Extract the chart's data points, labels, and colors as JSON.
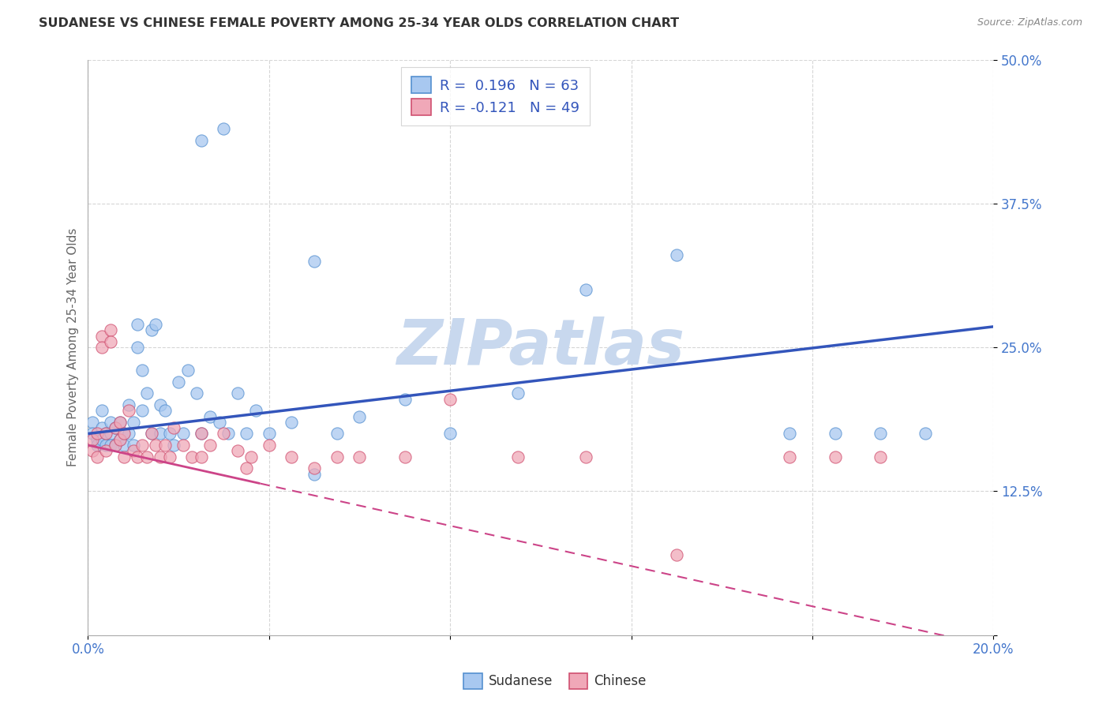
{
  "title": "SUDANESE VS CHINESE FEMALE POVERTY AMONG 25-34 YEAR OLDS CORRELATION CHART",
  "source": "Source: ZipAtlas.com",
  "ylabel": "Female Poverty Among 25-34 Year Olds",
  "xlim": [
    0.0,
    0.2
  ],
  "ylim": [
    0.0,
    0.5
  ],
  "sudanese_R": 0.196,
  "sudanese_N": 63,
  "chinese_R": -0.121,
  "chinese_N": 49,
  "sudanese_color": "#a8c8f0",
  "sudanese_edge": "#5590d0",
  "chinese_color": "#f0a8b8",
  "chinese_edge": "#d05070",
  "sudanese_line_color": "#3355bb",
  "chinese_line_color": "#cc4488",
  "watermark_color": "#c8d8ee",
  "sudanese_x": [
    0.001,
    0.001,
    0.002,
    0.002,
    0.003,
    0.003,
    0.003,
    0.004,
    0.004,
    0.005,
    0.005,
    0.005,
    0.006,
    0.006,
    0.007,
    0.007,
    0.008,
    0.008,
    0.009,
    0.009,
    0.01,
    0.01,
    0.011,
    0.011,
    0.012,
    0.012,
    0.013,
    0.014,
    0.014,
    0.015,
    0.016,
    0.016,
    0.017,
    0.018,
    0.019,
    0.02,
    0.021,
    0.022,
    0.024,
    0.025,
    0.027,
    0.029,
    0.031,
    0.033,
    0.035,
    0.037,
    0.04,
    0.045,
    0.05,
    0.055,
    0.06,
    0.07,
    0.08,
    0.095,
    0.11,
    0.13,
    0.155,
    0.165,
    0.175,
    0.185,
    0.025,
    0.03,
    0.05
  ],
  "sudanese_y": [
    0.185,
    0.175,
    0.17,
    0.165,
    0.195,
    0.18,
    0.17,
    0.175,
    0.165,
    0.185,
    0.175,
    0.165,
    0.18,
    0.165,
    0.185,
    0.17,
    0.175,
    0.165,
    0.2,
    0.175,
    0.185,
    0.165,
    0.27,
    0.25,
    0.23,
    0.195,
    0.21,
    0.175,
    0.265,
    0.27,
    0.175,
    0.2,
    0.195,
    0.175,
    0.165,
    0.22,
    0.175,
    0.23,
    0.21,
    0.175,
    0.19,
    0.185,
    0.175,
    0.21,
    0.175,
    0.195,
    0.175,
    0.185,
    0.14,
    0.175,
    0.19,
    0.205,
    0.175,
    0.21,
    0.3,
    0.33,
    0.175,
    0.175,
    0.175,
    0.175,
    0.43,
    0.44,
    0.325
  ],
  "chinese_x": [
    0.001,
    0.001,
    0.002,
    0.002,
    0.003,
    0.003,
    0.004,
    0.004,
    0.005,
    0.005,
    0.006,
    0.006,
    0.007,
    0.007,
    0.008,
    0.008,
    0.009,
    0.01,
    0.011,
    0.012,
    0.013,
    0.014,
    0.015,
    0.016,
    0.017,
    0.018,
    0.019,
    0.021,
    0.023,
    0.025,
    0.027,
    0.03,
    0.033,
    0.036,
    0.04,
    0.045,
    0.05,
    0.06,
    0.07,
    0.08,
    0.095,
    0.11,
    0.13,
    0.155,
    0.165,
    0.175,
    0.025,
    0.035,
    0.055
  ],
  "chinese_y": [
    0.17,
    0.16,
    0.175,
    0.155,
    0.26,
    0.25,
    0.175,
    0.16,
    0.265,
    0.255,
    0.18,
    0.165,
    0.185,
    0.17,
    0.175,
    0.155,
    0.195,
    0.16,
    0.155,
    0.165,
    0.155,
    0.175,
    0.165,
    0.155,
    0.165,
    0.155,
    0.18,
    0.165,
    0.155,
    0.175,
    0.165,
    0.175,
    0.16,
    0.155,
    0.165,
    0.155,
    0.145,
    0.155,
    0.155,
    0.205,
    0.155,
    0.155,
    0.07,
    0.155,
    0.155,
    0.155,
    0.155,
    0.145,
    0.155
  ],
  "sudanese_trendline": [
    0.175,
    0.268
  ],
  "chinese_trendline": [
    0.165,
    -0.01
  ],
  "xtick_positions": [
    0.0,
    0.04,
    0.08,
    0.12,
    0.16,
    0.2
  ],
  "xtick_labels": [
    "0.0%",
    "",
    "",
    "",
    "",
    "20.0%"
  ],
  "ytick_positions": [
    0.0,
    0.125,
    0.25,
    0.375,
    0.5
  ],
  "ytick_labels": [
    "",
    "12.5%",
    "25.0%",
    "37.5%",
    "50.0%"
  ]
}
